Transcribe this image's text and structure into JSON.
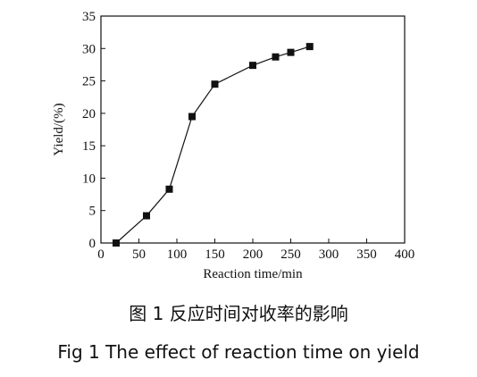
{
  "chart_data": {
    "type": "line",
    "title": "图 1  反应时间对收率的影响",
    "subtitle": "Fig 1   The effect of reaction time on yield",
    "x_label": "Reaction time/min",
    "y_label": "Yield/(%)",
    "x": [
      20,
      60,
      90,
      120,
      150,
      200,
      230,
      250,
      275
    ],
    "values": [
      0,
      4.2,
      8.3,
      19.5,
      24.5,
      27.4,
      28.7,
      29.4,
      30.3
    ],
    "color": "#111111",
    "marker": "square",
    "xlim": [
      0,
      400
    ],
    "xticks": [
      0,
      50,
      100,
      150,
      200,
      250,
      300,
      350,
      400
    ],
    "ylim": [
      0,
      35
    ],
    "yticks": [
      0,
      5,
      10,
      15,
      20,
      25,
      30,
      35
    ]
  }
}
